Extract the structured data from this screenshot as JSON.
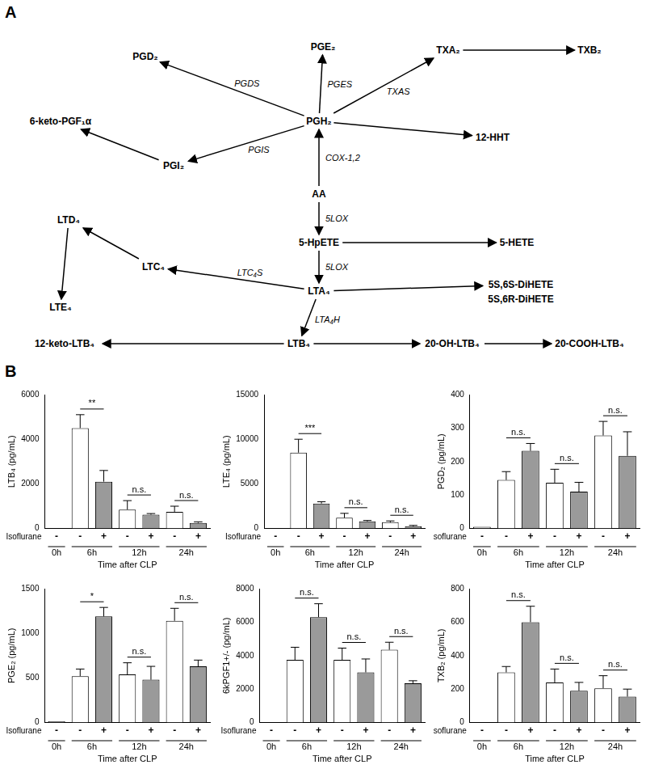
{
  "panel_labels": [
    "A",
    "B"
  ],
  "pathway": {
    "nodes": [
      {
        "label": "PGD₂"
      },
      {
        "label": "PGE₂"
      },
      {
        "label": "TXA₂"
      },
      {
        "label": "TXB₂"
      },
      {
        "label": "12-HHT"
      },
      {
        "label": "6-keto-PGF₁α"
      },
      {
        "label": "PGI₂"
      },
      {
        "label": "PGH₂"
      },
      {
        "label": "AA"
      },
      {
        "label": "5-HpETE"
      },
      {
        "label": "5-HETE"
      },
      {
        "label": "LTA₄"
      },
      {
        "label": "5S,6S-DiHETE"
      },
      {
        "label": "5S,6R-DiHETE"
      },
      {
        "label": "LTC₄"
      },
      {
        "label": "LTD₄"
      },
      {
        "label": "LTE₄"
      },
      {
        "label": "12-keto-LTB₄"
      },
      {
        "label": "LTB₄"
      },
      {
        "label": "20-OH-LTB₄"
      },
      {
        "label": "20-COOH-LTB₄"
      }
    ],
    "edges": [
      {
        "from": 8,
        "to": 7,
        "enzyme": "COX-1,2"
      },
      {
        "from": 7,
        "to": 1,
        "enzyme": "PGES"
      },
      {
        "from": 7,
        "to": 0,
        "enzyme": "PGDS"
      },
      {
        "from": 7,
        "to": 2,
        "enzyme": "TXAS"
      },
      {
        "from": 7,
        "to": 4
      },
      {
        "from": 2,
        "to": 3
      },
      {
        "from": 7,
        "to": 6,
        "enzyme": "PGIS"
      },
      {
        "from": 6,
        "to": 5
      },
      {
        "from": 8,
        "to": 9,
        "enzyme": "5LOX"
      },
      {
        "from": 9,
        "to": 10
      },
      {
        "from": 9,
        "to": 11,
        "enzyme": "5LOX"
      },
      {
        "from": 11,
        "to": 12
      },
      {
        "from": 11,
        "to": 14,
        "enzyme": "LTC₄S"
      },
      {
        "from": 14,
        "to": 15
      },
      {
        "from": 15,
        "to": 16
      },
      {
        "from": 11,
        "to": 18,
        "enzyme": "LTA₄H"
      },
      {
        "from": 18,
        "to": 17
      },
      {
        "from": 18,
        "to": 19
      },
      {
        "from": 19,
        "to": 20
      }
    ]
  },
  "chart_data": [
    {
      "type": "bar",
      "ylabel": "LTB₄ (pg/mL)",
      "xlabel": "Time after CLP",
      "row_label": "Isoflurane",
      "categories": [
        "-",
        "-",
        "+",
        "-",
        "+",
        "-",
        "+"
      ],
      "groups": [
        {
          "label": "0h",
          "size": 1
        },
        {
          "label": "6h",
          "size": 2
        },
        {
          "label": "12h",
          "size": 2
        },
        {
          "label": "24h",
          "size": 2
        }
      ],
      "values": [
        0,
        4500,
        2100,
        850,
        620,
        750,
        250
      ],
      "errors": [
        null,
        600,
        500,
        400,
        50,
        250,
        50
      ],
      "colors": [
        "#ffffff",
        "#ffffff",
        "#9a9a9a",
        "#ffffff",
        "#9a9a9a",
        "#ffffff",
        "#9a9a9a"
      ],
      "ylim": [
        0,
        6000
      ],
      "yticks": [
        0,
        2000,
        4000,
        6000
      ],
      "grid": false,
      "annotations": [
        {
          "from": 1,
          "to": 2,
          "label": "**"
        },
        {
          "from": 3,
          "to": 4,
          "label": "n.s."
        },
        {
          "from": 5,
          "to": 6,
          "label": "n.s."
        }
      ]
    },
    {
      "type": "bar",
      "ylabel": "LTE₄ (pg/mL)",
      "xlabel": "Time after CLP",
      "row_label": "Isoflurane",
      "categories": [
        "-",
        "-",
        "+",
        "-",
        "+",
        "-",
        "+"
      ],
      "groups": [
        {
          "label": "0h",
          "size": 1
        },
        {
          "label": "6h",
          "size": 2
        },
        {
          "label": "12h",
          "size": 2
        },
        {
          "label": "24h",
          "size": 2
        }
      ],
      "values": [
        0,
        8500,
        2800,
        1200,
        800,
        700,
        250
      ],
      "errors": [
        null,
        1500,
        200,
        500,
        100,
        150,
        100
      ],
      "colors": [
        "#ffffff",
        "#ffffff",
        "#9a9a9a",
        "#ffffff",
        "#9a9a9a",
        "#ffffff",
        "#9a9a9a"
      ],
      "ylim": [
        0,
        15000
      ],
      "yticks": [
        0,
        5000,
        10000,
        15000
      ],
      "grid": false,
      "annotations": [
        {
          "from": 1,
          "to": 2,
          "label": "***"
        },
        {
          "from": 3,
          "to": 4,
          "label": "n.s."
        },
        {
          "from": 5,
          "to": 6,
          "label": "n.s."
        }
      ]
    },
    {
      "type": "bar",
      "ylabel": "PGD₂ (pg/mL)",
      "xlabel": "Time after CLP",
      "row_label": "Isoflurane",
      "categories": [
        "-",
        "-",
        "+",
        "-",
        "+",
        "-",
        "+"
      ],
      "groups": [
        {
          "label": "0h",
          "size": 1
        },
        {
          "label": "6h",
          "size": 2
        },
        {
          "label": "12h",
          "size": 2
        },
        {
          "label": "24h",
          "size": 2
        }
      ],
      "values": [
        5,
        145,
        232,
        137,
        110,
        278,
        217
      ],
      "errors": [
        null,
        25,
        22,
        40,
        28,
        42,
        72
      ],
      "colors": [
        "#ffffff",
        "#ffffff",
        "#9a9a9a",
        "#ffffff",
        "#9a9a9a",
        "#ffffff",
        "#9a9a9a"
      ],
      "ylim": [
        0,
        400
      ],
      "yticks": [
        0,
        100,
        200,
        300,
        400
      ],
      "grid": false,
      "annotations": [
        {
          "from": 1,
          "to": 2,
          "label": "n.s."
        },
        {
          "from": 3,
          "to": 4,
          "label": "n.s."
        },
        {
          "from": 5,
          "to": 6,
          "label": "n.s."
        }
      ]
    },
    {
      "type": "bar",
      "ylabel": "PGE₂ (pg/mL)",
      "xlabel": "Time after CLP",
      "row_label": "Isoflurane",
      "categories": [
        "-",
        "-",
        "+",
        "-",
        "+",
        "-",
        "+"
      ],
      "groups": [
        {
          "label": "0h",
          "size": 1
        },
        {
          "label": "6h",
          "size": 2
        },
        {
          "label": "12h",
          "size": 2
        },
        {
          "label": "24h",
          "size": 2
        }
      ],
      "values": [
        15,
        520,
        1190,
        540,
        480,
        1140,
        630
      ],
      "errors": [
        null,
        80,
        100,
        130,
        150,
        140,
        70
      ],
      "colors": [
        "#ffffff",
        "#ffffff",
        "#9a9a9a",
        "#ffffff",
        "#9a9a9a",
        "#ffffff",
        "#9a9a9a"
      ],
      "ylim": [
        0,
        1500
      ],
      "yticks": [
        0,
        500,
        1000,
        1500
      ],
      "grid": false,
      "annotations": [
        {
          "from": 1,
          "to": 2,
          "label": "*"
        },
        {
          "from": 3,
          "to": 4,
          "label": "n.s."
        },
        {
          "from": 5,
          "to": 6,
          "label": "n.s."
        }
      ]
    },
    {
      "type": "bar",
      "ylabel": "6kPGF1+/- (pg/mL)",
      "xlabel": "Time after CLP",
      "row_label": "Isoflurane",
      "categories": [
        "-",
        "-",
        "+",
        "-",
        "+",
        "-",
        "+"
      ],
      "groups": [
        {
          "label": "0h",
          "size": 1
        },
        {
          "label": "6h",
          "size": 2
        },
        {
          "label": "12h",
          "size": 2
        },
        {
          "label": "24h",
          "size": 2
        }
      ],
      "values": [
        0,
        3750,
        6300,
        3750,
        3000,
        4350,
        2350
      ],
      "errors": [
        null,
        750,
        800,
        700,
        800,
        450,
        150
      ],
      "colors": [
        "#ffffff",
        "#ffffff",
        "#9a9a9a",
        "#ffffff",
        "#9a9a9a",
        "#ffffff",
        "#9a9a9a"
      ],
      "ylim": [
        0,
        8000
      ],
      "yticks": [
        0,
        2000,
        4000,
        6000,
        8000
      ],
      "grid": false,
      "annotations": [
        {
          "from": 1,
          "to": 2,
          "label": "n.s."
        },
        {
          "from": 3,
          "to": 4,
          "label": "n.s."
        },
        {
          "from": 5,
          "to": 6,
          "label": "n.s."
        }
      ]
    },
    {
      "type": "bar",
      "ylabel": "TXB₂ (pg/mL)",
      "xlabel": "Time after CLP",
      "row_label": "Isoflurane",
      "categories": [
        "-",
        "-",
        "+",
        "-",
        "+",
        "-",
        "+"
      ],
      "groups": [
        {
          "label": "0h",
          "size": 1
        },
        {
          "label": "6h",
          "size": 2
        },
        {
          "label": "12h",
          "size": 2
        },
        {
          "label": "24h",
          "size": 2
        }
      ],
      "values": [
        0,
        300,
        600,
        240,
        190,
        205,
        155
      ],
      "errors": [
        null,
        35,
        95,
        80,
        50,
        75,
        45
      ],
      "colors": [
        "#ffffff",
        "#ffffff",
        "#9a9a9a",
        "#ffffff",
        "#9a9a9a",
        "#ffffff",
        "#9a9a9a"
      ],
      "ylim": [
        0,
        800
      ],
      "yticks": [
        0,
        200,
        400,
        600,
        800
      ],
      "grid": false,
      "annotations": [
        {
          "from": 1,
          "to": 2,
          "label": "n.s."
        },
        {
          "from": 3,
          "to": 4,
          "label": "n.s."
        },
        {
          "from": 5,
          "to": 6,
          "label": "n.s."
        }
      ]
    }
  ]
}
